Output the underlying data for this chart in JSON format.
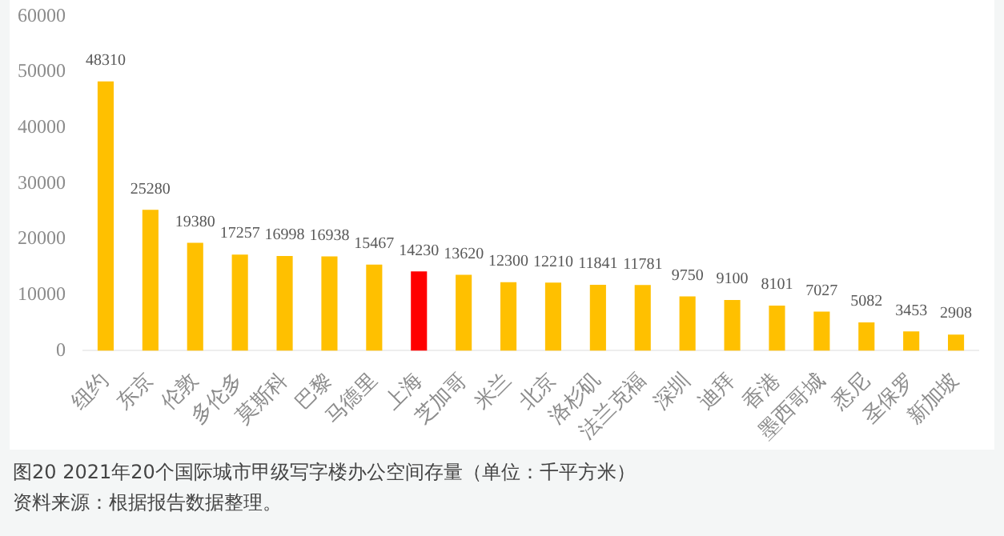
{
  "chart_data": {
    "type": "bar",
    "title": "图20  2021年20个国际城市甲级写字楼办公空间存量（单位：千平方米）",
    "annotations": [
      "资料来源：根据报告数据整理。"
    ],
    "categories": [
      "纽约",
      "东京",
      "伦敦",
      "多伦多",
      "莫斯科",
      "巴黎",
      "马德里",
      "上海",
      "芝加哥",
      "米兰",
      "北京",
      "洛杉矶",
      "法兰克福",
      "深圳",
      "迪拜",
      "香港",
      "墨西哥城",
      "悉尼",
      "圣保罗",
      "新加坡"
    ],
    "values": [
      48310,
      25280,
      19380,
      17257,
      16998,
      16938,
      15467,
      14230,
      13620,
      12300,
      12210,
      11841,
      11781,
      9750,
      9100,
      8101,
      7027,
      5082,
      3453,
      2908
    ],
    "colors": [
      "#ffc000",
      "#ffc000",
      "#ffc000",
      "#ffc000",
      "#ffc000",
      "#ffc000",
      "#ffc000",
      "#ff0000",
      "#ffc000",
      "#ffc000",
      "#ffc000",
      "#ffc000",
      "#ffc000",
      "#ffc000",
      "#ffc000",
      "#ffc000",
      "#ffc000",
      "#ffc000",
      "#ffc000",
      "#ffc000"
    ],
    "ylim": [
      0,
      60000
    ],
    "yticks": [
      0,
      10000,
      20000,
      30000,
      40000,
      50000,
      60000
    ],
    "grid": false,
    "legend": false,
    "data_labels": true
  }
}
